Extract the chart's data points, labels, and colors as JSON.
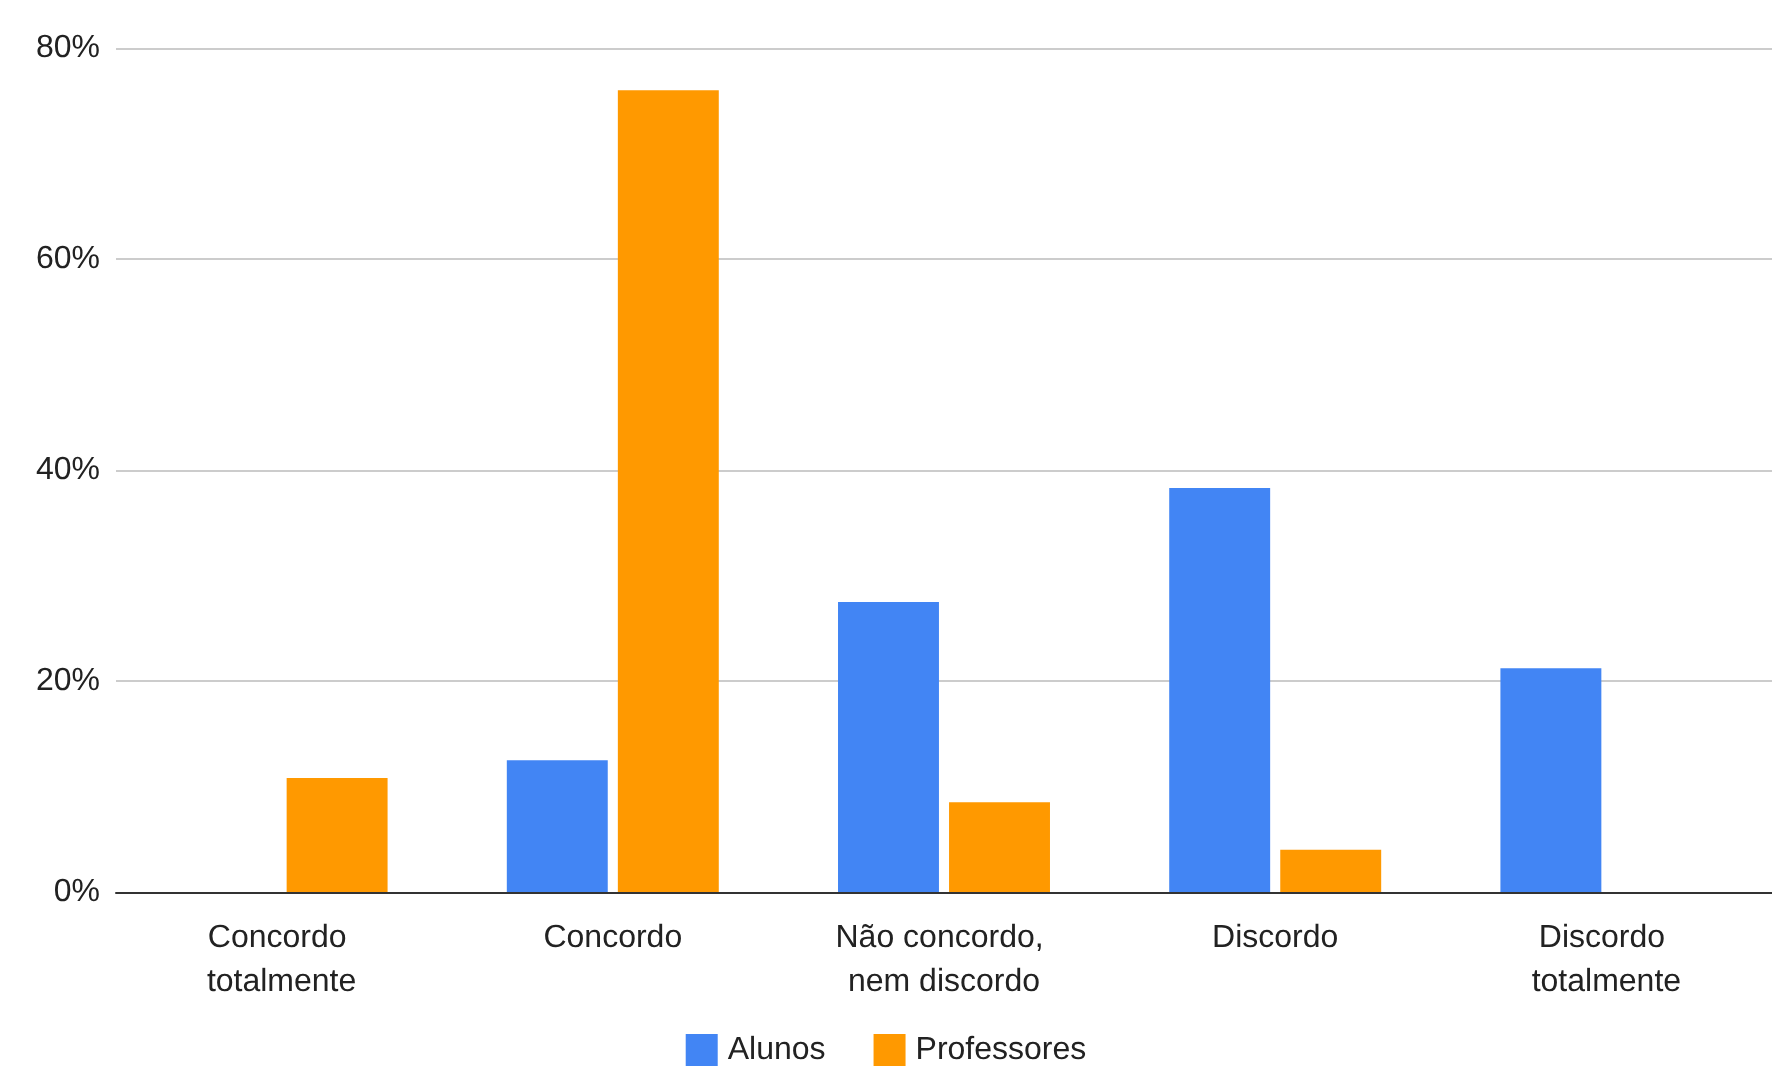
{
  "chart_data": {
    "type": "bar",
    "categories": [
      "Concordo totalmente",
      "Concordo",
      "Não concordo, nem discordo",
      "Discordo",
      "Discordo totalmente"
    ],
    "series": [
      {
        "name": "Alunos",
        "color": "#4285f4",
        "values": [
          0,
          12.5,
          27.5,
          38.3,
          21.2
        ]
      },
      {
        "name": "Professores",
        "color": "#ff9900",
        "values": [
          10.8,
          76,
          8.5,
          4,
          0
        ]
      }
    ],
    "ylim": [
      0,
      80
    ],
    "yticks": [
      {
        "value": 0,
        "label": "0%"
      },
      {
        "value": 20,
        "label": "20%"
      },
      {
        "value": 40,
        "label": "40%"
      },
      {
        "value": 60,
        "label": "60%"
      },
      {
        "value": 80,
        "label": "80%"
      }
    ],
    "grid": "y",
    "legend": "bottom"
  }
}
